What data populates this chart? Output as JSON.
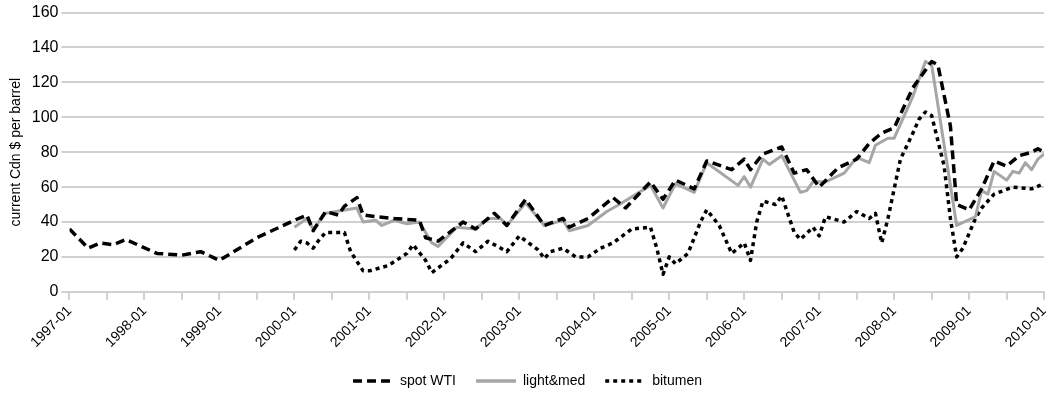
{
  "chart_data": {
    "type": "line",
    "ylabel": "current Cdn $ per barrel",
    "xlim": [
      "1997-01",
      "2010-01"
    ],
    "xticks": [
      {
        "value": "1997-01",
        "label": "1997-01"
      },
      {
        "value": "1997-07",
        "label": null
      },
      {
        "value": "1998-01",
        "label": "1998-01"
      },
      {
        "value": "1998-07",
        "label": null
      },
      {
        "value": "1999-01",
        "label": "1999-01"
      },
      {
        "value": "1999-07",
        "label": null
      },
      {
        "value": "2000-01",
        "label": "2000-01"
      },
      {
        "value": "2000-07",
        "label": null
      },
      {
        "value": "2001-01",
        "label": "2001-01"
      },
      {
        "value": "2001-07",
        "label": null
      },
      {
        "value": "2002-01",
        "label": "2002-01"
      },
      {
        "value": "2002-07",
        "label": null
      },
      {
        "value": "2003-01",
        "label": "2003-01"
      },
      {
        "value": "2003-07",
        "label": null
      },
      {
        "value": "2004-01",
        "label": "2004-01"
      },
      {
        "value": "2004-07",
        "label": null
      },
      {
        "value": "2005-01",
        "label": "2005-01"
      },
      {
        "value": "2005-07",
        "label": null
      },
      {
        "value": "2006-01",
        "label": "2006-01"
      },
      {
        "value": "2006-07",
        "label": null
      },
      {
        "value": "2007-01",
        "label": "2007-01"
      },
      {
        "value": "2007-07",
        "label": null
      },
      {
        "value": "2008-01",
        "label": "2008-01"
      },
      {
        "value": "2008-07",
        "label": null
      },
      {
        "value": "2009-01",
        "label": "2009-01"
      },
      {
        "value": "2009-07",
        "label": null
      },
      {
        "value": "2010-01",
        "label": "2010-01"
      }
    ],
    "ylim": [
      0,
      160
    ],
    "yticks": [
      0,
      20,
      40,
      60,
      80,
      100,
      120,
      140,
      160
    ],
    "grid": "y",
    "legend": "bottom",
    "marker": "none",
    "series": [
      {
        "name": "spot WTI",
        "color": "#000000",
        "line_style": "dashed",
        "x": [
          "1997-01",
          "1997-04",
          "1997-06",
          "1997-08",
          "1997-10",
          "1998-03",
          "1998-07",
          "1998-10",
          "1999-01",
          "1999-07",
          "2000-01",
          "2000-03",
          "2000-04",
          "2000-06",
          "2000-08",
          "2000-09",
          "2000-11",
          "2000-12",
          "2001-02",
          "2001-05",
          "2001-09",
          "2001-10",
          "2001-12",
          "2002-04",
          "2002-06",
          "2002-09",
          "2002-11",
          "2003-02",
          "2003-05",
          "2003-08",
          "2003-09",
          "2003-12",
          "2004-04",
          "2004-06",
          "2004-10",
          "2004-12",
          "2005-02",
          "2005-05",
          "2005-07",
          "2005-11",
          "2006-01",
          "2006-02",
          "2006-04",
          "2006-07",
          "2006-09",
          "2006-11",
          "2007-01",
          "2007-04",
          "2007-07",
          "2007-09",
          "2007-11",
          "2008-01",
          "2008-04",
          "2008-07",
          "2008-08",
          "2008-10",
          "2008-11",
          "2009-01",
          "2009-03",
          "2009-05",
          "2009-07",
          "2009-09",
          "2009-11",
          "2009-12",
          "2010-01"
        ],
        "values": [
          36,
          25,
          28,
          27,
          30,
          22,
          21,
          23,
          18,
          31,
          41,
          44,
          35,
          46,
          44,
          49,
          54,
          44,
          43,
          42,
          41,
          31,
          29,
          40,
          36,
          45,
          38,
          53,
          38,
          42,
          37,
          42,
          54,
          48,
          63,
          53,
          64,
          59,
          75,
          70,
          76,
          70,
          79,
          83,
          68,
          70,
          60,
          71,
          76,
          85,
          91,
          94,
          117,
          132,
          130,
          95,
          50,
          47,
          59,
          75,
          72,
          78,
          80,
          82,
          80
        ]
      },
      {
        "name": "light&med",
        "color": "#a6a6a6",
        "line_style": "solid",
        "x": [
          "2000-01",
          "2000-03",
          "2000-04",
          "2000-06",
          "2000-11",
          "2000-12",
          "2001-02",
          "2001-03",
          "2001-05",
          "2001-07",
          "2001-09",
          "2001-11",
          "2001-12",
          "2002-03",
          "2002-06",
          "2002-08",
          "2002-10",
          "2002-11",
          "2003-02",
          "2003-05",
          "2003-08",
          "2003-09",
          "2003-12",
          "2004-03",
          "2004-05",
          "2004-10",
          "2004-12",
          "2005-02",
          "2005-05",
          "2005-07",
          "2005-12",
          "2006-01",
          "2006-02",
          "2006-04",
          "2006-05",
          "2006-07",
          "2006-10",
          "2006-11",
          "2006-12",
          "2007-02",
          "2007-05",
          "2007-07",
          "2007-09",
          "2007-10",
          "2007-12",
          "2008-01",
          "2008-04",
          "2008-06",
          "2008-07",
          "2008-11",
          "2009-02",
          "2009-03",
          "2009-04",
          "2009-05",
          "2009-07",
          "2009-08",
          "2009-09",
          "2009-10",
          "2009-11",
          "2009-12",
          "2010-01"
        ],
        "values": [
          37,
          42,
          36,
          45,
          48,
          40,
          41,
          38,
          41,
          39,
          40,
          28,
          26,
          37,
          36,
          42,
          42,
          38,
          51,
          38,
          41,
          35,
          38,
          46,
          50,
          61,
          48,
          62,
          57,
          74,
          61,
          66,
          60,
          76,
          73,
          78,
          57,
          58,
          63,
          63,
          68,
          77,
          74,
          84,
          88,
          88,
          112,
          132,
          130,
          38,
          43,
          58,
          56,
          69,
          64,
          69,
          68,
          74,
          70,
          76,
          79
        ]
      },
      {
        "name": "bitumen",
        "color": "#000000",
        "line_style": "dotted",
        "x": [
          "2000-01",
          "2000-02",
          "2000-03",
          "2000-04",
          "2000-05",
          "2000-06",
          "2000-09",
          "2000-10",
          "2000-12",
          "2001-01",
          "2001-04",
          "2001-07",
          "2001-08",
          "2001-10",
          "2001-11",
          "2002-02",
          "2002-04",
          "2002-06",
          "2002-08",
          "2002-11",
          "2003-01",
          "2003-04",
          "2003-05",
          "2003-06",
          "2003-08",
          "2003-10",
          "2003-12",
          "2004-02",
          "2004-04",
          "2004-07",
          "2004-10",
          "2004-11",
          "2004-12",
          "2005-01",
          "2005-02",
          "2005-04",
          "2005-06",
          "2005-07",
          "2005-09",
          "2005-11",
          "2006-01",
          "2006-02",
          "2006-03",
          "2006-04",
          "2006-06",
          "2006-07",
          "2006-09",
          "2006-10",
          "2006-12",
          "2007-01",
          "2007-02",
          "2007-05",
          "2007-07",
          "2007-09",
          "2007-10",
          "2007-11",
          "2007-12",
          "2008-02",
          "2008-04",
          "2008-05",
          "2008-06",
          "2008-07",
          "2008-09",
          "2008-10",
          "2008-11",
          "2008-12",
          "2009-02",
          "2009-03",
          "2009-05",
          "2009-08",
          "2009-11",
          "2010-01"
        ],
        "values": [
          24,
          29,
          28,
          25,
          30,
          34,
          34,
          23,
          12,
          12,
          15,
          22,
          27,
          18,
          11,
          19,
          28,
          23,
          29,
          23,
          32,
          24,
          19,
          23,
          25,
          20,
          20,
          25,
          28,
          36,
          37,
          25,
          10,
          20,
          16,
          22,
          40,
          47,
          38,
          22,
          28,
          18,
          40,
          52,
          50,
          55,
          34,
          30,
          37,
          32,
          43,
          40,
          46,
          42,
          45,
          28,
          42,
          76,
          91,
          99,
          103,
          101,
          72,
          42,
          20,
          25,
          42,
          48,
          56,
          60,
          59,
          62
        ]
      }
    ]
  }
}
